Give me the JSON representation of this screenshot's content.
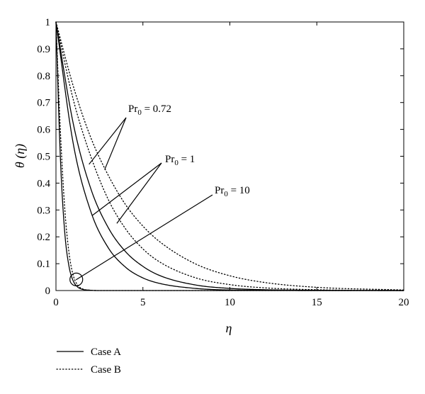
{
  "chart_data": {
    "type": "line",
    "xlabel": "η",
    "ylabel": "θ (η)",
    "xlim": [
      0,
      20
    ],
    "ylim": [
      0,
      1
    ],
    "xticks": [
      "0",
      "5",
      "10",
      "15",
      "20"
    ],
    "yticks": [
      "0",
      "0.1",
      "0.2",
      "0.3",
      "0.4",
      "0.5",
      "0.6",
      "0.7",
      "0.8",
      "0.9",
      "1"
    ],
    "grid": false,
    "legend_position": "bottom-left",
    "legend": [
      {
        "label": "Case A",
        "style": "solid"
      },
      {
        "label": "Case B",
        "style": "dotted"
      }
    ],
    "series": [
      {
        "case": "A",
        "style": "solid",
        "pr0": "0.72",
        "x": [
          0,
          1,
          2,
          3,
          4,
          5,
          6,
          8,
          10,
          12,
          15,
          20
        ],
        "y": [
          1,
          0.62,
          0.38,
          0.235,
          0.145,
          0.09,
          0.055,
          0.021,
          0.008,
          0.003,
          0.001,
          0
        ]
      },
      {
        "case": "A",
        "style": "solid",
        "pr0": "1",
        "x": [
          0,
          1,
          2,
          3,
          4,
          5,
          6,
          8,
          10,
          12,
          15,
          20
        ],
        "y": [
          1,
          0.545,
          0.295,
          0.16,
          0.087,
          0.047,
          0.026,
          0.008,
          0.002,
          0.001,
          0,
          0
        ]
      },
      {
        "case": "A",
        "style": "solid",
        "pr0": "10",
        "x": [
          0,
          0.25,
          0.5,
          0.75,
          1,
          1.25,
          1.5,
          2,
          2.5,
          3,
          5,
          20
        ],
        "y": [
          1,
          0.5,
          0.22,
          0.09,
          0.035,
          0.013,
          0.005,
          0.001,
          0,
          0,
          0,
          0
        ]
      },
      {
        "case": "B",
        "style": "dotted",
        "pr0": "0.72",
        "x": [
          0,
          1,
          2,
          3,
          4,
          5,
          6,
          8,
          10,
          12,
          15,
          20
        ],
        "y": [
          1,
          0.76,
          0.57,
          0.43,
          0.32,
          0.24,
          0.18,
          0.1,
          0.055,
          0.03,
          0.012,
          0.002
        ]
      },
      {
        "case": "B",
        "style": "dotted",
        "pr0": "1",
        "x": [
          0,
          1,
          2,
          3,
          4,
          5,
          6,
          8,
          10,
          12,
          15,
          20
        ],
        "y": [
          1,
          0.71,
          0.5,
          0.34,
          0.23,
          0.155,
          0.105,
          0.048,
          0.022,
          0.01,
          0.003,
          0
        ]
      },
      {
        "case": "B",
        "style": "dotted",
        "pr0": "10",
        "x": [
          0,
          0.25,
          0.5,
          0.75,
          1,
          1.25,
          1.5,
          2,
          2.5,
          3,
          5,
          20
        ],
        "y": [
          1,
          0.6,
          0.31,
          0.14,
          0.055,
          0.02,
          0.007,
          0.001,
          0,
          0,
          0,
          0
        ]
      }
    ],
    "annotations": [
      {
        "label_main": "Pr",
        "label_sub": "0",
        "label_rest": " = 0.72",
        "targets": [
          {
            "x": 1.9,
            "y": 0.47
          },
          {
            "x": 2.8,
            "y": 0.45
          }
        ]
      },
      {
        "label_main": "Pr",
        "label_sub": "0",
        "label_rest": " = 1",
        "targets": [
          {
            "x": 2.1,
            "y": 0.28
          },
          {
            "x": 3.5,
            "y": 0.25
          }
        ]
      },
      {
        "label_main": "Pr",
        "label_sub": "0",
        "label_rest": " = 10",
        "targets": [
          {
            "x": 1.15,
            "y": 0.04
          }
        ]
      }
    ]
  }
}
